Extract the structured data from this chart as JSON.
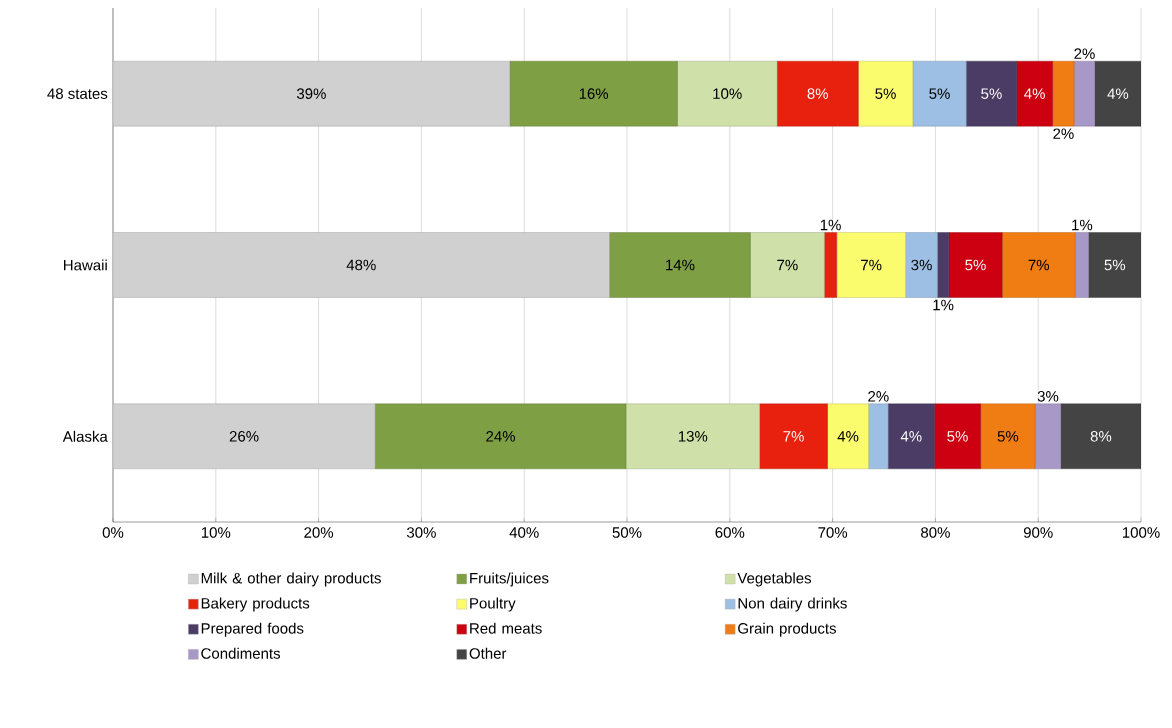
{
  "chart_data": {
    "type": "bar",
    "orientation": "horizontal",
    "stacked": true,
    "categories": [
      "48 states",
      "Hawaii",
      "Alaska"
    ],
    "series": [
      {
        "name": "Milk & other dairy products",
        "color": "#d0d0d0",
        "values": [
          38.6,
          48.3,
          25.5
        ],
        "value_labels": [
          "39%",
          "48%",
          "26%"
        ]
      },
      {
        "name": "Fruits/juices",
        "color": "#7f9f45",
        "values": [
          16.3,
          13.7,
          24.4
        ],
        "value_labels": [
          "16%",
          "14%",
          "24%"
        ]
      },
      {
        "name": "Vegetables",
        "color": "#cfe0a8",
        "values": [
          9.7,
          7.2,
          13.0
        ],
        "value_labels": [
          "10%",
          "7%",
          "13%"
        ]
      },
      {
        "name": "Bakery products",
        "color": "#e8200e",
        "values": [
          7.9,
          1.2,
          6.6
        ],
        "value_labels": [
          "8%",
          "1%",
          "7%"
        ]
      },
      {
        "name": "Poultry",
        "color": "#fbfb6e",
        "values": [
          5.3,
          6.7,
          4.0
        ],
        "value_labels": [
          "5%",
          "7%",
          "4%"
        ]
      },
      {
        "name": "Non dairy drinks",
        "color": "#9dbfe3",
        "values": [
          5.2,
          3.1,
          1.9
        ],
        "value_labels": [
          "5%",
          "3%",
          "2%"
        ]
      },
      {
        "name": "Prepared foods",
        "color": "#4a3c64",
        "values": [
          4.9,
          1.1,
          4.5
        ],
        "value_labels": [
          "5%",
          "1%",
          "4%"
        ]
      },
      {
        "name": "Red meats",
        "color": "#cc0010",
        "values": [
          3.5,
          5.2,
          4.5
        ],
        "value_labels": [
          "4%",
          "5%",
          "5%"
        ]
      },
      {
        "name": "Grain products",
        "color": "#f07c14",
        "values": [
          2.1,
          7.1,
          5.3
        ],
        "value_labels": [
          "2%",
          "7%",
          "5%"
        ]
      },
      {
        "name": "Condiments",
        "color": "#a898c8",
        "values": [
          2.0,
          1.3,
          2.5
        ],
        "value_labels": [
          "2%",
          "1%",
          "3%"
        ]
      },
      {
        "name": "Other",
        "color": "#444444",
        "values": [
          4.5,
          5.1,
          7.8
        ],
        "value_labels": [
          "4%",
          "5%",
          "8%"
        ]
      }
    ],
    "xlim": [
      0,
      100
    ],
    "xticks": [
      {
        "value": 0,
        "label": "0%"
      },
      {
        "value": 10,
        "label": "10%"
      },
      {
        "value": 20,
        "label": "20%"
      },
      {
        "value": 30,
        "label": "30%"
      },
      {
        "value": 40,
        "label": "40%"
      },
      {
        "value": 50,
        "label": "50%"
      },
      {
        "value": 60,
        "label": "60%"
      },
      {
        "value": 70,
        "label": "70%"
      },
      {
        "value": 80,
        "label": "80%"
      },
      {
        "value": 90,
        "label": "90%"
      },
      {
        "value": 100,
        "label": "100%"
      }
    ],
    "grid": "x",
    "legend": "bottom"
  }
}
